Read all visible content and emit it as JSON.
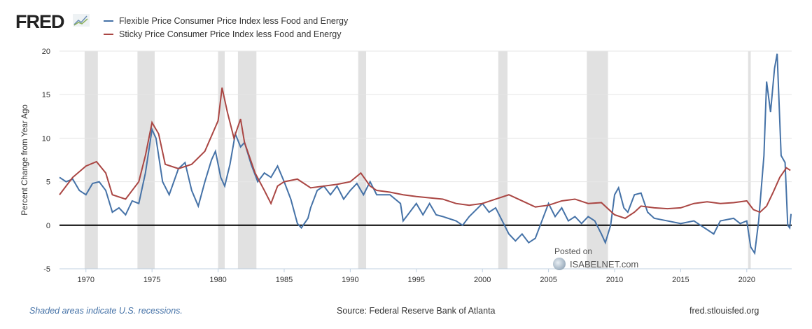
{
  "logo": "FRED",
  "colors": {
    "flexible": "#4572a7",
    "sticky": "#aa4643",
    "recession": "#e1e1e1"
  },
  "chart_data": {
    "type": "line",
    "title": "",
    "xlabel": "",
    "ylabel": "Percent Change from Year Ago",
    "xlim": [
      1968,
      2023.4
    ],
    "ylim": [
      -5,
      20
    ],
    "yticks": [
      "-5",
      "0",
      "5",
      "10",
      "15",
      "20"
    ],
    "xticks": [
      "1970",
      "1975",
      "1980",
      "1985",
      "1990",
      "1995",
      "2000",
      "2005",
      "2010",
      "2015",
      "2020"
    ],
    "grid": true,
    "legend_position": "top-left",
    "recessions": [
      [
        1969.9,
        1970.9
      ],
      [
        1973.9,
        1975.2
      ],
      [
        1980.0,
        1980.5
      ],
      [
        1981.5,
        1982.9
      ],
      [
        1990.6,
        1991.2
      ],
      [
        2001.2,
        2001.9
      ],
      [
        2007.9,
        2009.5
      ],
      [
        2020.1,
        2020.3
      ]
    ],
    "series": [
      {
        "name": "Flexible Price Consumer Price Index less Food and Energy",
        "color": "#4572a7",
        "x": [
          1968,
          1968.5,
          1969,
          1969.5,
          1970,
          1970.5,
          1971,
          1971.5,
          1972,
          1972.5,
          1973,
          1973.5,
          1974,
          1974.5,
          1975,
          1975.3,
          1975.8,
          1976.3,
          1977,
          1977.5,
          1978,
          1978.5,
          1979,
          1979.5,
          1979.8,
          1980.2,
          1980.5,
          1980.9,
          1981.3,
          1981.7,
          1982,
          1982.5,
          1983,
          1983.5,
          1984,
          1984.5,
          1985,
          1985.5,
          1986,
          1986.3,
          1986.8,
          1987,
          1987.5,
          1988,
          1988.5,
          1989,
          1989.5,
          1990,
          1990.5,
          1991,
          1991.5,
          1992,
          1993,
          1993.8,
          1994,
          1995,
          1995.5,
          1996,
          1996.5,
          1997,
          1998,
          1998.5,
          1999,
          2000,
          2000.5,
          2001,
          2001.5,
          2002,
          2002.5,
          2003,
          2003.5,
          2004,
          2004.5,
          2005,
          2005.5,
          2006,
          2006.5,
          2007,
          2007.5,
          2008,
          2008.5,
          2009,
          2009.3,
          2009.7,
          2010,
          2010.3,
          2010.7,
          2011,
          2011.5,
          2012,
          2012.5,
          2013,
          2014,
          2015,
          2016,
          2016.5,
          2017,
          2017.5,
          2018,
          2019,
          2019.5,
          2020,
          2020.3,
          2020.6,
          2020.9,
          2021.3,
          2021.5,
          2021.8,
          2022.1,
          2022.3,
          2022.6,
          2022.9,
          2023.1,
          2023.25,
          2023.35
        ],
        "y": [
          5.5,
          5,
          5.3,
          4,
          3.5,
          4.8,
          5,
          4,
          1.5,
          2,
          1.2,
          2.8,
          2.5,
          6,
          11,
          10,
          5,
          3.5,
          6.5,
          7.2,
          4,
          2.2,
          5,
          7.5,
          8.5,
          5.5,
          4.5,
          7,
          10.5,
          9,
          9.5,
          7,
          5,
          6,
          5.5,
          6.8,
          5,
          3,
          0.2,
          -0.3,
          0.8,
          2,
          4,
          4.5,
          3.5,
          4.5,
          3,
          4,
          4.8,
          3.5,
          5,
          3.5,
          3.5,
          2.5,
          0.5,
          2.5,
          1.2,
          2.5,
          1.2,
          1,
          0.5,
          0,
          1,
          2.5,
          1.5,
          2,
          0.5,
          -1,
          -1.8,
          -1,
          -2,
          -1.5,
          0.5,
          2.5,
          1,
          2,
          0.5,
          1,
          0.2,
          1,
          0.5,
          -1,
          -2,
          0,
          3.5,
          4.3,
          2,
          1.5,
          3.5,
          3.7,
          1.5,
          0.8,
          0.5,
          0.2,
          0.5,
          0,
          -0.5,
          -1,
          0.5,
          0.8,
          0.2,
          0.5,
          -2.5,
          -3.2,
          0.5,
          8,
          16.5,
          13,
          18,
          19.7,
          8,
          7.2,
          0,
          -0.3,
          1.3
        ]
      },
      {
        "name": "Sticky Price Consumer Price Index less Food and Energy",
        "color": "#aa4643",
        "x": [
          1968,
          1969,
          1970,
          1970.8,
          1971.5,
          1972,
          1973,
          1974,
          1974.5,
          1975,
          1975.5,
          1976,
          1977,
          1978,
          1979,
          1980,
          1980.3,
          1980.7,
          1981.2,
          1981.7,
          1982,
          1982.8,
          1983.5,
          1984,
          1984.5,
          1985,
          1986,
          1987,
          1988,
          1989,
          1990,
          1990.8,
          1991.5,
          1992,
          1993,
          1994,
          1995,
          1997,
          1998,
          1999,
          2000,
          2001,
          2002,
          2003,
          2004,
          2005,
          2006,
          2007,
          2008,
          2009,
          2010,
          2010.8,
          2011.5,
          2012,
          2013,
          2014,
          2015,
          2016,
          2017,
          2018,
          2019,
          2020,
          2020.5,
          2021,
          2021.5,
          2022,
          2022.5,
          2023,
          2023.3
        ],
        "y": [
          3.5,
          5.5,
          6.8,
          7.3,
          6,
          3.5,
          3,
          5,
          8,
          11.8,
          10.5,
          7,
          6.5,
          7,
          8.5,
          12,
          15.8,
          13,
          10,
          12.2,
          9.5,
          6,
          4,
          2.5,
          4.5,
          5,
          5.3,
          4.3,
          4.5,
          4.7,
          5,
          6,
          4.5,
          4,
          3.8,
          3.5,
          3.3,
          3,
          2.5,
          2.3,
          2.5,
          3,
          3.5,
          2.8,
          2.1,
          2.3,
          2.8,
          3,
          2.5,
          2.6,
          1.2,
          0.8,
          1.5,
          2.2,
          2,
          1.9,
          2,
          2.5,
          2.7,
          2.5,
          2.6,
          2.8,
          1.8,
          1.5,
          2.2,
          3.8,
          5.5,
          6.6,
          6.3
        ]
      }
    ]
  },
  "watermark": {
    "posted": "Posted on",
    "site": "ISABELNET.com"
  },
  "footer": {
    "note": "Shaded areas indicate U.S. recessions.",
    "source": "Source: Federal Reserve Bank of Atlanta",
    "site": "fred.stlouisfed.org"
  }
}
